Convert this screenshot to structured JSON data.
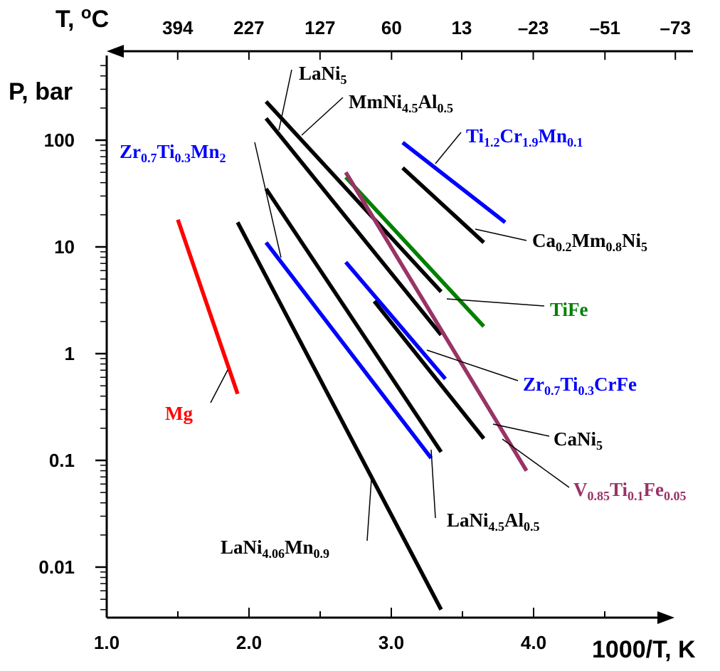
{
  "chart_data": {
    "type": "line",
    "x_axis": {
      "label": "1000/T, K",
      "ticks": [
        "1.0",
        "2.0",
        "3.0",
        "4.0"
      ],
      "tick_values": [
        1.0,
        2.0,
        3.0,
        4.0
      ],
      "range": [
        1.0,
        4.0
      ]
    },
    "y_axis": {
      "label": "P, bar",
      "scale": "log",
      "ticks": [
        "100",
        "10",
        "1",
        "0.1",
        "0.01"
      ],
      "tick_values": [
        100,
        10,
        1,
        0.1,
        0.01
      ]
    },
    "top_axis": {
      "label": "T, °C",
      "ticks": [
        "394",
        "227",
        "127",
        "60",
        "13",
        "–23",
        "–51",
        "–73"
      ],
      "tick_values": [
        394,
        227,
        127,
        60,
        13,
        -23,
        -51,
        -73
      ]
    },
    "grid": false,
    "series": [
      {
        "name": "Mg",
        "color": "#ff0000",
        "x": [
          1.5,
          1.92
        ],
        "y": [
          18,
          0.42
        ],
        "label_parts": [
          {
            "t": "Mg"
          }
        ]
      },
      {
        "name": "LaNi5",
        "color": "#000000",
        "x": [
          2.12,
          3.35
        ],
        "y": [
          230,
          3.8
        ],
        "label_parts": [
          {
            "t": "LaNi"
          },
          {
            "t": "5",
            "sub": true
          }
        ]
      },
      {
        "name": "MmNi4.5Al0.5",
        "color": "#000000",
        "x": [
          2.12,
          3.35
        ],
        "y": [
          160,
          1.5
        ],
        "label_parts": [
          {
            "t": "MmNi"
          },
          {
            "t": "4.5",
            "sub": true
          },
          {
            "t": "Al"
          },
          {
            "t": "0.5",
            "sub": true
          }
        ]
      },
      {
        "name": "LaNi4.5Al0.5",
        "color": "#000000",
        "x": [
          2.12,
          3.35
        ],
        "y": [
          35,
          0.12
        ],
        "label_parts": [
          {
            "t": "LaNi"
          },
          {
            "t": "4.5",
            "sub": true
          },
          {
            "t": "Al"
          },
          {
            "t": "0.5",
            "sub": true
          }
        ]
      },
      {
        "name": "LaNi4.06Mn0.9",
        "color": "#000000",
        "x": [
          1.92,
          3.35
        ],
        "y": [
          17,
          0.004
        ],
        "label_parts": [
          {
            "t": "LaNi"
          },
          {
            "t": "4.06",
            "sub": true
          },
          {
            "t": "Mn"
          },
          {
            "t": "0.9",
            "sub": true
          }
        ]
      },
      {
        "name": "Zr0.7Ti0.3Mn2",
        "color": "#0000ff",
        "x": [
          2.12,
          3.28
        ],
        "y": [
          11,
          0.105
        ],
        "label_parts": [
          {
            "t": "Zr"
          },
          {
            "t": "0.7",
            "sub": true
          },
          {
            "t": "Ti"
          },
          {
            "t": "0.3",
            "sub": true
          },
          {
            "t": "Mn"
          },
          {
            "t": "2",
            "sub": true
          }
        ]
      },
      {
        "name": "Zr0.7Ti0.3CrFe",
        "color": "#0000ff",
        "x": [
          2.68,
          3.38
        ],
        "y": [
          7.2,
          0.58
        ],
        "label_parts": [
          {
            "t": "Zr"
          },
          {
            "t": "0.7",
            "sub": true
          },
          {
            "t": "Ti"
          },
          {
            "t": "0.3",
            "sub": true
          },
          {
            "t": "CrFe"
          }
        ]
      },
      {
        "name": "CaNi5",
        "color": "#000000",
        "x": [
          2.88,
          3.65
        ],
        "y": [
          3.1,
          0.16
        ],
        "label_parts": [
          {
            "t": "CaNi"
          },
          {
            "t": "5",
            "sub": true
          }
        ]
      },
      {
        "name": "TiFe",
        "color": "#008000",
        "x": [
          2.68,
          3.65
        ],
        "y": [
          45,
          1.8
        ],
        "label_parts": [
          {
            "t": "TiFe"
          }
        ]
      },
      {
        "name": "V0.85Ti0.1Fe0.05",
        "color": "#993366",
        "x": [
          2.68,
          3.95
        ],
        "y": [
          50,
          0.08
        ],
        "label_parts": [
          {
            "t": "V"
          },
          {
            "t": "0.85",
            "sub": true
          },
          {
            "t": "Ti"
          },
          {
            "t": "0.1",
            "sub": true
          },
          {
            "t": "Fe"
          },
          {
            "t": "0.05",
            "sub": true
          }
        ]
      },
      {
        "name": "Ca0.2Mm0.8Ni5",
        "color": "#000000",
        "x": [
          3.08,
          3.65
        ],
        "y": [
          55,
          11
        ],
        "label_parts": [
          {
            "t": "Ca"
          },
          {
            "t": "0.2",
            "sub": true
          },
          {
            "t": "Mm"
          },
          {
            "t": "0.8",
            "sub": true
          },
          {
            "t": "Ni"
          },
          {
            "t": "5",
            "sub": true
          }
        ]
      },
      {
        "name": "Ti1.2Cr1.9Mn0.1",
        "color": "#0000ff",
        "x": [
          3.08,
          3.8
        ],
        "y": [
          95,
          17
        ],
        "label_parts": [
          {
            "t": "Ti"
          },
          {
            "t": "1.2",
            "sub": true
          },
          {
            "t": "Cr"
          },
          {
            "t": "1.9",
            "sub": true
          },
          {
            "t": "Mn"
          },
          {
            "t": "0.1",
            "sub": true
          }
        ]
      }
    ]
  }
}
